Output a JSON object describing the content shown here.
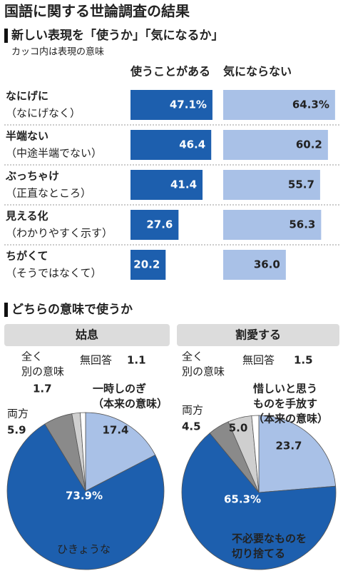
{
  "title": "国語に関する世論調査の結果",
  "section_title": "どちらの意味で使うか",
  "chart_data": [
    {
      "type": "hbar-pair",
      "title": "新しい表現を「使うか」「気になるか」",
      "subtitle": "カッコ内は表現の意味",
      "categories": [
        [
          "なにげに",
          "（なにげなく）"
        ],
        [
          "半端ない",
          "（中途半端でない）"
        ],
        [
          "ぶっちゃけ",
          "（正直なところ）"
        ],
        [
          "見える化",
          "（わかりやすく示す）"
        ],
        [
          "ちがくて",
          "（そうではなくて）"
        ]
      ],
      "series": [
        {
          "name": "使うことがある",
          "color": "#1d5fae",
          "values": [
            47.1,
            46.4,
            41.4,
            27.6,
            20.2
          ],
          "value_labels": [
            "47.1%",
            "46.4",
            "41.4",
            "27.6",
            "20.2"
          ]
        },
        {
          "name": "気にならない",
          "color": "#a9c1e7",
          "values": [
            64.3,
            60.2,
            55.7,
            56.3,
            36.0
          ],
          "value_labels": [
            "64.3%",
            "60.2",
            "55.7",
            "56.3",
            "36.0"
          ]
        }
      ]
    },
    {
      "type": "pie",
      "title": "姑息",
      "categories": [
        [
          "一時しのぎ",
          "（本来の意味）"
        ],
        [
          "ひきょうな"
        ],
        [
          "両方"
        ],
        [
          "全く",
          "別の意味"
        ],
        [
          "無回答"
        ]
      ],
      "values": [
        17.4,
        73.9,
        5.9,
        1.7,
        1.1
      ],
      "value_labels": [
        "17.4",
        "73.9%",
        "5.9",
        "1.7",
        "1.1"
      ],
      "colors": [
        "#a9c1e7",
        "#1d5fae",
        "#8a8a8a",
        "#cfcfcf",
        "#ffffff"
      ]
    },
    {
      "type": "pie",
      "title": "割愛する",
      "categories": [
        [
          "惜しいと思う",
          "ものを手放す",
          "（本来の意味）"
        ],
        [
          "不必要なものを",
          "切り捨てる"
        ],
        [
          "両方"
        ],
        [
          "全く",
          "別の意味"
        ],
        [
          "無回答"
        ]
      ],
      "values": [
        23.7,
        65.3,
        4.5,
        5.0,
        1.5
      ],
      "value_labels": [
        "23.7",
        "65.3%",
        "4.5",
        "5.0",
        "1.5"
      ],
      "colors": [
        "#a9c1e7",
        "#1d5fae",
        "#8a8a8a",
        "#cfcfcf",
        "#ffffff"
      ]
    }
  ]
}
